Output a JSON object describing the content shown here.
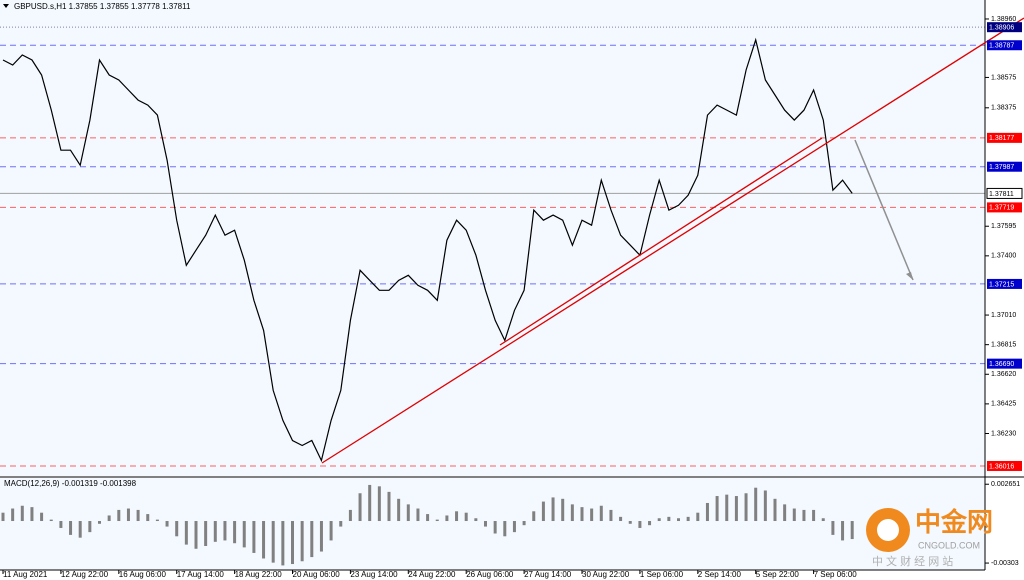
{
  "chart_data": [
    {
      "type": "line",
      "title": "GBPUSD.s,H1  1.37855 1.37855 1.37778 1.37811",
      "color": "#000000",
      "categories": [
        "11 Aug 2021",
        null,
        null,
        null,
        null,
        null,
        "12 Aug 22:00",
        null,
        null,
        null,
        null,
        null,
        "16 Aug 06:00",
        null,
        null,
        null,
        null,
        null,
        "17 Aug 14:00",
        null,
        null,
        null,
        null,
        null,
        "18 Aug 22:00",
        null,
        null,
        null,
        null,
        null,
        "20 Aug 06:00",
        null,
        null,
        null,
        null,
        null,
        "23 Aug 14:00",
        null,
        null,
        null,
        null,
        null,
        "24 Aug 22:00",
        null,
        null,
        null,
        null,
        null,
        "26 Aug 06:00",
        null,
        null,
        null,
        null,
        null,
        "27 Aug 14:00",
        null,
        null,
        null,
        null,
        null,
        "30 Aug 22:00",
        null,
        null,
        null,
        null,
        null,
        "1 Sep 06:00",
        null,
        null,
        null,
        null,
        null,
        "2 Sep 14:00",
        null,
        null,
        null,
        null,
        null,
        "5 Sep 22:00",
        null,
        null,
        null,
        null,
        null,
        "7 Sep 06:00",
        null,
        null,
        null,
        null,
        null,
        null,
        null,
        null,
        null,
        null,
        null,
        null,
        null,
        null,
        null,
        null,
        null
      ],
      "values": [
        1.3869,
        1.38657,
        1.38723,
        1.3869,
        1.38591,
        1.3836,
        1.38096,
        1.38096,
        1.37997,
        1.38294,
        1.3869,
        1.38591,
        1.38558,
        1.38492,
        1.38426,
        1.38393,
        1.38327,
        1.3803,
        1.37635,
        1.37338,
        1.37437,
        1.37536,
        1.37668,
        1.37536,
        1.37569,
        1.37371,
        1.37107,
        1.36909,
        1.36514,
        1.36316,
        1.36184,
        1.36151,
        1.36184,
        1.36052,
        1.36316,
        1.36514,
        1.36975,
        1.37305,
        1.37239,
        1.37173,
        1.37173,
        1.37239,
        1.37272,
        1.37206,
        1.37173,
        1.37107,
        1.37503,
        1.37635,
        1.37569,
        1.37404,
        1.37173,
        1.36975,
        1.36843,
        1.37041,
        1.37173,
        1.37701,
        1.37635,
        1.37668,
        1.37635,
        1.3747,
        1.37635,
        1.37602,
        1.37898,
        1.37701,
        1.37536,
        1.3747,
        1.37404,
        1.37668,
        1.37898,
        1.37701,
        1.37733,
        1.37799,
        1.37931,
        1.38327,
        1.38393,
        1.3836,
        1.38327,
        1.38624,
        1.38822,
        1.38558,
        1.38459,
        1.3836,
        1.38294,
        1.3836,
        1.38492,
        1.38294,
        1.37832,
        1.37898,
        1.37811,
        null,
        null,
        null,
        null,
        null,
        null,
        null,
        null,
        null,
        null,
        null,
        null,
        null
      ],
      "ylim": [
        1.3595,
        1.39085
      ],
      "yticks": [
        {
          "value": 1.3896,
          "label": "1.38960"
        },
        1.38575,
        1.38375,
        1.37595,
        {
          "value": 1.374,
          "label": "1.37400"
        },
        {
          "value": 1.3701,
          "label": "1.37010"
        },
        1.36815,
        {
          "value": 1.3662,
          "label": "1.36620"
        },
        1.36425,
        {
          "value": 1.3623,
          "label": "1.36230"
        }
      ],
      "levels": [
        {
          "value": 1.38906,
          "label": "1.38906",
          "color": "#000080"
        },
        {
          "value": 1.38787,
          "label": "1.38787",
          "color": "#0000cc"
        },
        {
          "value": 1.38177,
          "label": "1.38177",
          "color": "#ff0000"
        },
        {
          "value": 1.37987,
          "label": "1.37987",
          "color": "#0000cc"
        },
        {
          "value": 1.37811,
          "label": "1.37811",
          "color": "#ffffff"
        },
        {
          "value": 1.37719,
          "label": "1.37719",
          "color": "#ff0000"
        },
        {
          "value": 1.37215,
          "label": "1.37215",
          "color": "#0000cc"
        },
        {
          "value": 1.3669,
          "label": "1.36690",
          "color": "#0000cc"
        },
        {
          "value": 1.36016,
          "label": "1.36016",
          "color": "#ff0000"
        }
      ]
    },
    {
      "type": "bar",
      "title": "MACD(12,26,9) -0.001319 -0.001398",
      "color": "#808080",
      "values": [
        0.0006,
        0.0009,
        0.0011,
        0.001,
        0.0006,
        0.0001,
        -0.0005,
        -0.001,
        -0.0012,
        -0.0008,
        -0.0002,
        0.0004,
        0.0008,
        0.0009,
        0.0008,
        0.0005,
        0.0001,
        -0.0004,
        -0.0011,
        -0.0017,
        -0.002,
        -0.0018,
        -0.0015,
        -0.0014,
        -0.0016,
        -0.0019,
        -0.0023,
        -0.0027,
        -0.003,
        -0.0032,
        -0.0031,
        -0.0029,
        -0.0026,
        -0.0022,
        -0.0014,
        -0.0004,
        0.0008,
        0.002,
        0.0026,
        0.0025,
        0.0021,
        0.0016,
        0.0012,
        0.0009,
        0.0005,
        0.0001,
        0.0004,
        0.0007,
        0.0006,
        0.0002,
        -0.0004,
        -0.0009,
        -0.0011,
        -0.0008,
        -0.0003,
        0.0007,
        0.0014,
        0.0017,
        0.0016,
        0.0012,
        0.001,
        0.0009,
        0.0011,
        0.0008,
        0.0003,
        -0.0002,
        -0.0005,
        -0.0003,
        0.0002,
        0.0003,
        0.0002,
        0.0003,
        0.0006,
        0.0013,
        0.0018,
        0.0019,
        0.0018,
        0.002,
        0.0024,
        0.0022,
        0.0016,
        0.0012,
        0.0009,
        0.0008,
        0.0008,
        0.0002,
        -0.001,
        -0.0014,
        -0.0013,
        null,
        null,
        null,
        null,
        null,
        null,
        null,
        null,
        null,
        null,
        null,
        null,
        null,
        null
      ],
      "ylim": [
        -0.00353,
        0.0031
      ],
      "yticks": [
        0.002651,
        -0.00303
      ]
    }
  ],
  "watermark": {
    "name": "中金网",
    "domain": "CNGOLD.COM",
    "tagline": "中 文 财 经 网 站"
  }
}
